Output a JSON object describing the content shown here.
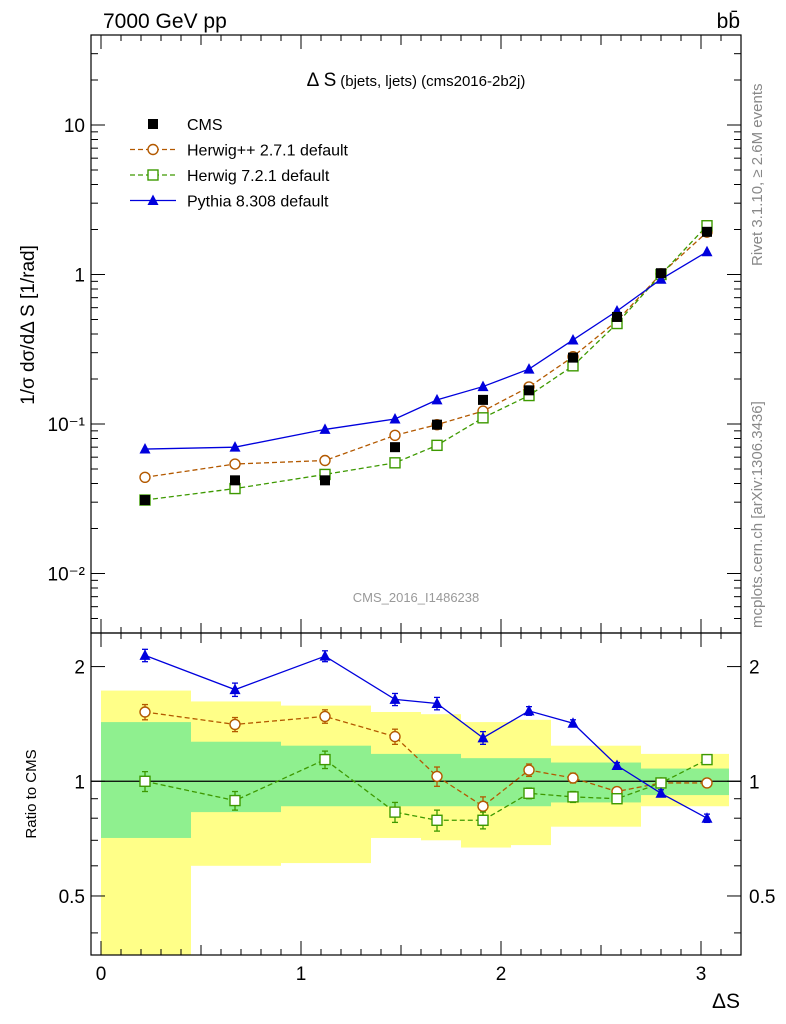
{
  "header": {
    "beam": "7000 GeV pp",
    "process": "bb̄"
  },
  "side": {
    "rivet": "Rivet 3.1.10, ≥ 2.6M events",
    "mcplots": "mcplots.cern.ch [arXiv:1306.3436]"
  },
  "chart_data": [
    {
      "type": "line",
      "title": "Δ S (bjets, ljets) (cms2016-2b2j)",
      "title_main": "Δ S",
      "title_sub": "(bjets, ljets) (cms2016-2b2j)",
      "ylabel": "1/σ dσ/dΔ S [1/rad]",
      "xlabel": "ΔS",
      "watermark": "CMS_2016_I1486238",
      "yscale": "log",
      "ylim": [
        0.004,
        40
      ],
      "xlim": [
        -0.05,
        3.2
      ],
      "ytick_labels": {
        "10": "10",
        "1": "1",
        "0.1": "10⁻¹",
        "0.01": "10⁻²"
      },
      "legend_position": "top-left",
      "x": [
        0.22,
        0.67,
        1.12,
        1.47,
        1.68,
        1.91,
        2.14,
        2.36,
        2.58,
        2.8,
        3.03
      ],
      "series": [
        {
          "name": "CMS",
          "color": "#000000",
          "marker": "square-filled",
          "values": [
            0.031,
            0.042,
            0.042,
            0.07,
            0.099,
            0.145,
            0.168,
            0.278,
            0.52,
            1.02,
            1.93
          ]
        },
        {
          "name": "Herwig++ 2.7.1 default",
          "color": "#b35900",
          "marker": "circle-open",
          "dash": "dashed",
          "values": [
            0.044,
            0.054,
            0.057,
            0.084,
            0.099,
            0.122,
            0.177,
            0.282,
            0.49,
            1.01,
            1.92
          ]
        },
        {
          "name": "Herwig 7.2.1 default",
          "color": "#3d9900",
          "marker": "square-open",
          "dash": "dashed",
          "values": [
            0.031,
            0.037,
            0.046,
            0.055,
            0.072,
            0.11,
            0.155,
            0.245,
            0.47,
            1.0,
            2.12
          ]
        },
        {
          "name": "Pythia 8.308 default",
          "color": "#0000dd",
          "marker": "triangle-filled",
          "values": [
            0.068,
            0.07,
            0.092,
            0.108,
            0.145,
            0.178,
            0.233,
            0.365,
            0.57,
            0.93,
            1.42
          ]
        }
      ]
    },
    {
      "type": "line",
      "ylabel": "Ratio to CMS",
      "xlabel": "ΔS",
      "yscale": "log",
      "ylim": [
        0.35,
        2.45
      ],
      "xlim": [
        -0.05,
        3.2
      ],
      "yticks": [
        0.5,
        1,
        2
      ],
      "ytick_labels": [
        "0.5",
        "1",
        "2"
      ],
      "xticks": [
        0,
        1,
        2,
        3
      ],
      "xtick_labels": [
        "0",
        "1",
        "2",
        "3"
      ],
      "reference_line": 1,
      "uncertainty_bands": {
        "bins": [
          [
            0,
            0.45
          ],
          [
            0.45,
            0.9
          ],
          [
            0.9,
            1.35
          ],
          [
            1.35,
            1.6
          ],
          [
            1.6,
            1.8
          ],
          [
            1.8,
            2.05
          ],
          [
            2.05,
            2.25
          ],
          [
            2.25,
            2.48
          ],
          [
            2.48,
            2.7
          ],
          [
            2.7,
            2.92
          ],
          [
            2.92,
            3.14
          ]
        ],
        "stat": {
          "color": "#8ff08f",
          "lo": [
            0.71,
            0.83,
            0.86,
            0.86,
            0.86,
            0.86,
            0.86,
            0.88,
            0.88,
            0.92,
            0.92
          ],
          "hi": [
            1.43,
            1.27,
            1.24,
            1.18,
            1.18,
            1.15,
            1.15,
            1.12,
            1.12,
            1.08,
            1.08
          ]
        },
        "total": {
          "color": "#ffff88",
          "lo": [
            0.35,
            0.6,
            0.61,
            0.71,
            0.7,
            0.67,
            0.68,
            0.76,
            0.76,
            0.86,
            0.86
          ],
          "hi": [
            1.73,
            1.62,
            1.58,
            1.52,
            1.5,
            1.43,
            1.45,
            1.24,
            1.24,
            1.18,
            1.18
          ]
        }
      },
      "x": [
        0.22,
        0.67,
        1.12,
        1.47,
        1.68,
        1.91,
        2.14,
        2.36,
        2.58,
        2.8,
        3.03
      ],
      "series": [
        {
          "name": "Herwig++ 2.7.1 default",
          "color": "#b35900",
          "marker": "circle-open",
          "dash": "dashed",
          "values": [
            1.52,
            1.41,
            1.48,
            1.31,
            1.03,
            0.86,
            1.07,
            1.02,
            0.94,
            0.99,
            0.99
          ],
          "errors": [
            0.07,
            0.06,
            0.06,
            0.06,
            0.06,
            0.05,
            0.04,
            0.03,
            0.02,
            0.02,
            0.02
          ]
        },
        {
          "name": "Herwig 7.2.1 default",
          "color": "#3d9900",
          "marker": "square-open",
          "dash": "dashed",
          "values": [
            1.0,
            0.89,
            1.14,
            0.83,
            0.79,
            0.79,
            0.93,
            0.91,
            0.9,
            0.99,
            1.14
          ],
          "errors": [
            0.06,
            0.05,
            0.06,
            0.05,
            0.05,
            0.04,
            0.03,
            0.03,
            0.02,
            0.02,
            0.02
          ]
        },
        {
          "name": "Pythia 8.308 default",
          "color": "#0000dd",
          "marker": "triangle-filled",
          "values": [
            2.14,
            1.74,
            2.13,
            1.64,
            1.6,
            1.3,
            1.53,
            1.42,
            1.1,
            0.93,
            0.8
          ],
          "errors": [
            0.08,
            0.07,
            0.07,
            0.06,
            0.06,
            0.05,
            0.04,
            0.03,
            0.02,
            0.02,
            0.02
          ]
        }
      ]
    }
  ]
}
